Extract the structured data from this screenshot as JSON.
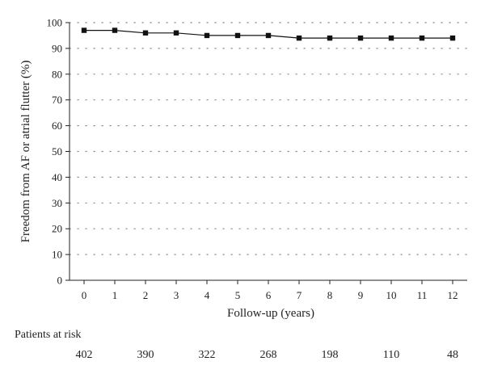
{
  "chart_data": {
    "type": "line",
    "title": "",
    "xlabel": "Follow-up (years)",
    "ylabel": "Freedom from AF or atrial flutter (%)",
    "xlim": [
      0,
      12
    ],
    "ylim": [
      0,
      100
    ],
    "x_ticks": [
      0,
      1,
      2,
      3,
      4,
      5,
      6,
      7,
      8,
      9,
      10,
      11,
      12
    ],
    "y_ticks": [
      0,
      10,
      20,
      30,
      40,
      50,
      60,
      70,
      80,
      90,
      100
    ],
    "grid": "horizontal-dotted",
    "legend": "none",
    "series": [
      {
        "marker": "square",
        "color": "#111111",
        "x": [
          0,
          1,
          2,
          3,
          4,
          5,
          6,
          7,
          8,
          9,
          10,
          11,
          12
        ],
        "y": [
          97,
          97,
          96,
          96,
          95,
          95,
          95,
          94,
          94,
          94,
          94,
          94,
          94
        ]
      }
    ],
    "risk_table": {
      "title": "Patients at risk",
      "x": [
        0,
        2,
        4,
        6,
        8,
        10,
        12
      ],
      "counts": [
        "402",
        "390",
        "322",
        "268",
        "198",
        "110",
        "48"
      ]
    }
  }
}
